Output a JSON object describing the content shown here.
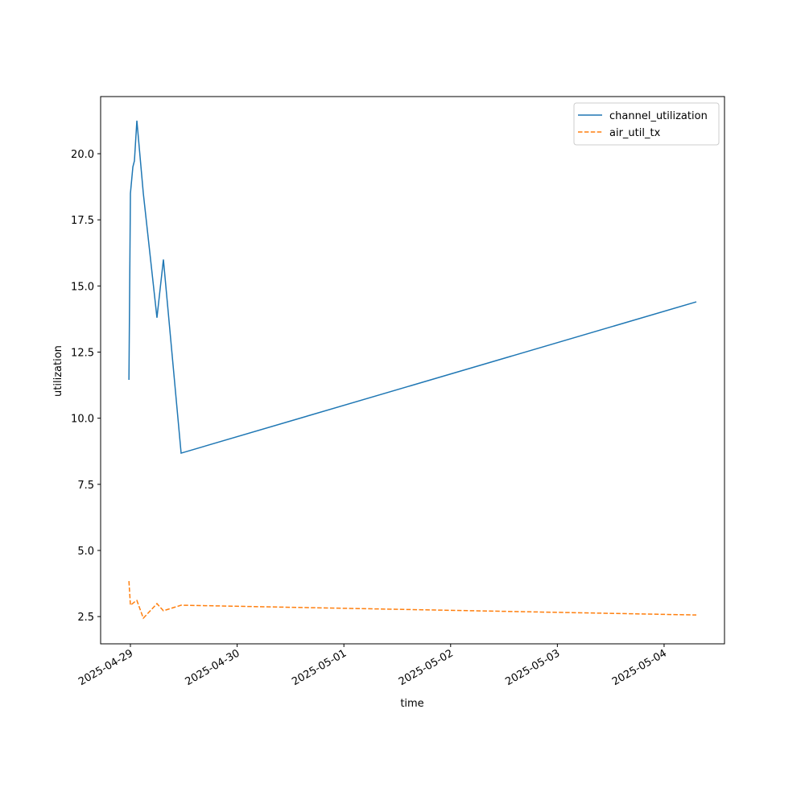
{
  "chart_data": {
    "type": "line",
    "xlabel": "time",
    "ylabel": "utilization",
    "x": [
      "2025-04-28T23:40",
      "2025-04-29T00:00",
      "2025-04-29T00:33",
      "2025-04-29T00:54",
      "2025-04-29T01:27",
      "2025-04-29T02:54",
      "2025-04-29T05:58",
      "2025-04-29T07:25",
      "2025-04-29T11:24",
      "2025-05-04T07:15"
    ],
    "series": [
      {
        "name": "channel_utilization",
        "color": "#1f77b4",
        "linestyle": "solid",
        "values": [
          11.45,
          18.5,
          19.5,
          19.73,
          21.25,
          18.5,
          13.8,
          16.0,
          8.68,
          14.4
        ]
      },
      {
        "name": "air_util_tx",
        "color": "#ff7f0e",
        "linestyle": "dashed",
        "values": [
          3.84,
          2.93,
          3.0,
          3.05,
          3.11,
          2.44,
          2.99,
          2.72,
          2.93,
          2.56
        ]
      }
    ],
    "xlim": [
      "2025-04-28T17:18",
      "2025-05-04T13:35"
    ],
    "xticks": [
      "2025-04-29",
      "2025-04-30",
      "2025-05-01",
      "2025-05-02",
      "2025-05-03",
      "2025-05-04"
    ],
    "ylim": [
      1.47,
      22.16
    ],
    "yticks": [
      2.5,
      {
        "value": 5,
        "label": "5.0"
      },
      7.5,
      {
        "value": 10,
        "label": "10.0"
      },
      12.5,
      {
        "value": 15,
        "label": "15.0"
      },
      17.5,
      {
        "value": 20,
        "label": "20.0"
      }
    ],
    "legend": "upper right",
    "grid": false
  }
}
